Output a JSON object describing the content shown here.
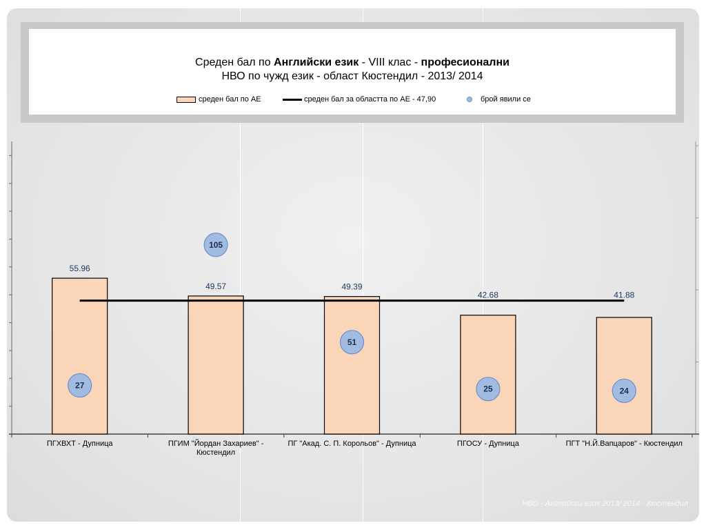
{
  "footer_text": "НВО - Английски език 2013/ 2014 - Кюстендил",
  "colors": {
    "bar_fill": "#fad5b8",
    "bar_stroke": "#000000",
    "avg_line": "#000000",
    "bubble_fill": "#a2bbe0",
    "bubble_stroke": "#6a8fcf",
    "label_color": "#1f3864"
  },
  "chart_data": {
    "type": "bar",
    "title": {
      "line1_prefix": "Среден бал по ",
      "line1_bold1": "Английски език",
      "line1_mid": " - VIII клас - ",
      "line1_bold2": "професионални",
      "line2": "НВО по чужд език - област Кюстендил - 2013/ 2014"
    },
    "legend": {
      "bars": "среден бал по АЕ",
      "line": "среден бал за областта по АЕ - 47,90",
      "bubbles": "брой явили се"
    },
    "categories": [
      [
        "ПГХВХТ - Дупница"
      ],
      [
        "ПГИМ \"Йордан Захариев\" -",
        "Кюстендил"
      ],
      [
        "ПГ \"Акад. С. П. Корольов\" - Дупница"
      ],
      [
        "ПГОСУ - Дупница"
      ],
      [
        "ПГТ \"Н.Й.Вапцаров\" - Кюстендил"
      ]
    ],
    "series": [
      {
        "values": [
          55.96,
          49.57,
          49.39,
          42.68,
          41.88
        ],
        "labels": [
          "55.96",
          "49.57",
          "49.39",
          "42.68",
          "41.88"
        ]
      }
    ],
    "average": 47.9,
    "participants": [
      27,
      105,
      51,
      25,
      24
    ],
    "ylim": [
      0,
      110
    ],
    "participants_ylim": [
      0,
      170
    ],
    "grid": false,
    "legend_position": "top"
  }
}
